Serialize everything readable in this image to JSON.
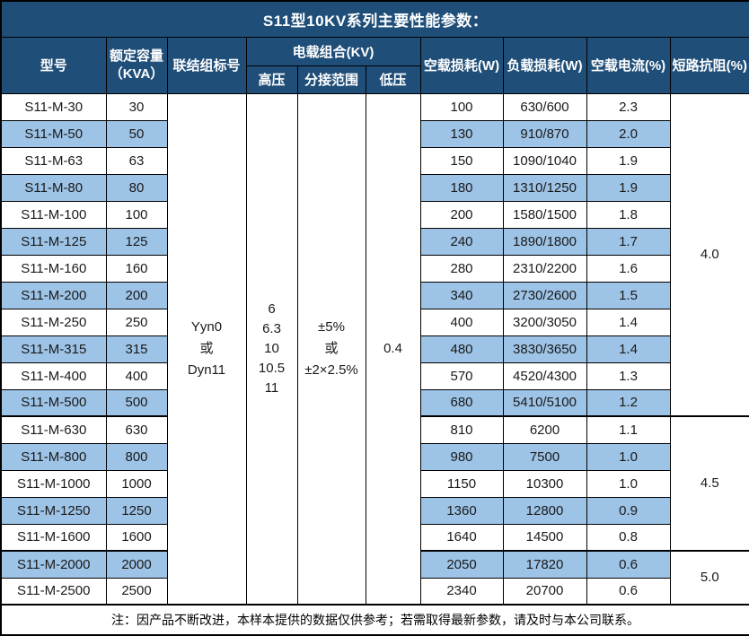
{
  "title": "S11型10KV系列主要性能参数：",
  "colors": {
    "header_bg": "#1F4E79",
    "stripe_bg": "#9DC3E6",
    "border": "#000000"
  },
  "table": {
    "headers": {
      "model": "型号",
      "capacity_line1": "额定容量",
      "capacity_line2": "（KVA）",
      "connection": "联结组标号",
      "voltage_combo": "电载组合(KV)",
      "high_voltage": "高压",
      "tap_range": "分接范围",
      "low_voltage": "低压",
      "no_load_loss": "空载损耗(W)",
      "load_loss": "负载损耗(W)",
      "no_load_current": "空载电流(%)",
      "short_circuit_impedance": "短路抗阻(%)"
    },
    "merged": {
      "connection": "Yyn0\n或\nDyn11",
      "high_voltage": "6\n6.3\n10\n10.5\n11",
      "tap_range": "±5%\n或\n±2×2.5%",
      "low_voltage": "0.4"
    },
    "rows": [
      {
        "model": "S11-M-30",
        "capacity": "30",
        "no_load_loss": "100",
        "load_loss": "630/600",
        "no_load_current": "2.3"
      },
      {
        "model": "S11-M-50",
        "capacity": "50",
        "no_load_loss": "130",
        "load_loss": "910/870",
        "no_load_current": "2.0"
      },
      {
        "model": "S11-M-63",
        "capacity": "63",
        "no_load_loss": "150",
        "load_loss": "1090/1040",
        "no_load_current": "1.9"
      },
      {
        "model": "S11-M-80",
        "capacity": "80",
        "no_load_loss": "180",
        "load_loss": "1310/1250",
        "no_load_current": "1.9"
      },
      {
        "model": "S11-M-100",
        "capacity": "100",
        "no_load_loss": "200",
        "load_loss": "1580/1500",
        "no_load_current": "1.8"
      },
      {
        "model": "S11-M-125",
        "capacity": "125",
        "no_load_loss": "240",
        "load_loss": "1890/1800",
        "no_load_current": "1.7"
      },
      {
        "model": "S11-M-160",
        "capacity": "160",
        "no_load_loss": "280",
        "load_loss": "2310/2200",
        "no_load_current": "1.6"
      },
      {
        "model": "S11-M-200",
        "capacity": "200",
        "no_load_loss": "340",
        "load_loss": "2730/2600",
        "no_load_current": "1.5"
      },
      {
        "model": "S11-M-250",
        "capacity": "250",
        "no_load_loss": "400",
        "load_loss": "3200/3050",
        "no_load_current": "1.4"
      },
      {
        "model": "S11-M-315",
        "capacity": "315",
        "no_load_loss": "480",
        "load_loss": "3830/3650",
        "no_load_current": "1.4"
      },
      {
        "model": "S11-M-400",
        "capacity": "400",
        "no_load_loss": "570",
        "load_loss": "4520/4300",
        "no_load_current": "1.3"
      },
      {
        "model": "S11-M-500",
        "capacity": "500",
        "no_load_loss": "680",
        "load_loss": "5410/5100",
        "no_load_current": "1.2"
      },
      {
        "model": "S11-M-630",
        "capacity": "630",
        "no_load_loss": "810",
        "load_loss": "6200",
        "no_load_current": "1.1"
      },
      {
        "model": "S11-M-800",
        "capacity": "800",
        "no_load_loss": "980",
        "load_loss": "7500",
        "no_load_current": "1.0"
      },
      {
        "model": "S11-M-1000",
        "capacity": "1000",
        "no_load_loss": "1150",
        "load_loss": "10300",
        "no_load_current": "1.0"
      },
      {
        "model": "S11-M-1250",
        "capacity": "1250",
        "no_load_loss": "1360",
        "load_loss": "12800",
        "no_load_current": "0.9"
      },
      {
        "model": "S11-M-1600",
        "capacity": "1600",
        "no_load_loss": "1640",
        "load_loss": "14500",
        "no_load_current": "0.8"
      },
      {
        "model": "S11-M-2000",
        "capacity": "2000",
        "no_load_loss": "2050",
        "load_loss": "17820",
        "no_load_current": "0.6"
      },
      {
        "model": "S11-M-2500",
        "capacity": "2500",
        "no_load_loss": "2340",
        "load_loss": "20700",
        "no_load_current": "0.6"
      }
    ],
    "impedance_groups": [
      {
        "value": "4.0",
        "row_start": 0,
        "span": 12
      },
      {
        "value": "4.5",
        "row_start": 12,
        "span": 5
      },
      {
        "value": "5.0",
        "row_start": 17,
        "span": 2
      }
    ]
  },
  "footer_note": "注：因产品不断改进，本样本提供的数据仅供参考；若需取得最新参数，请及时与本公司联系。"
}
